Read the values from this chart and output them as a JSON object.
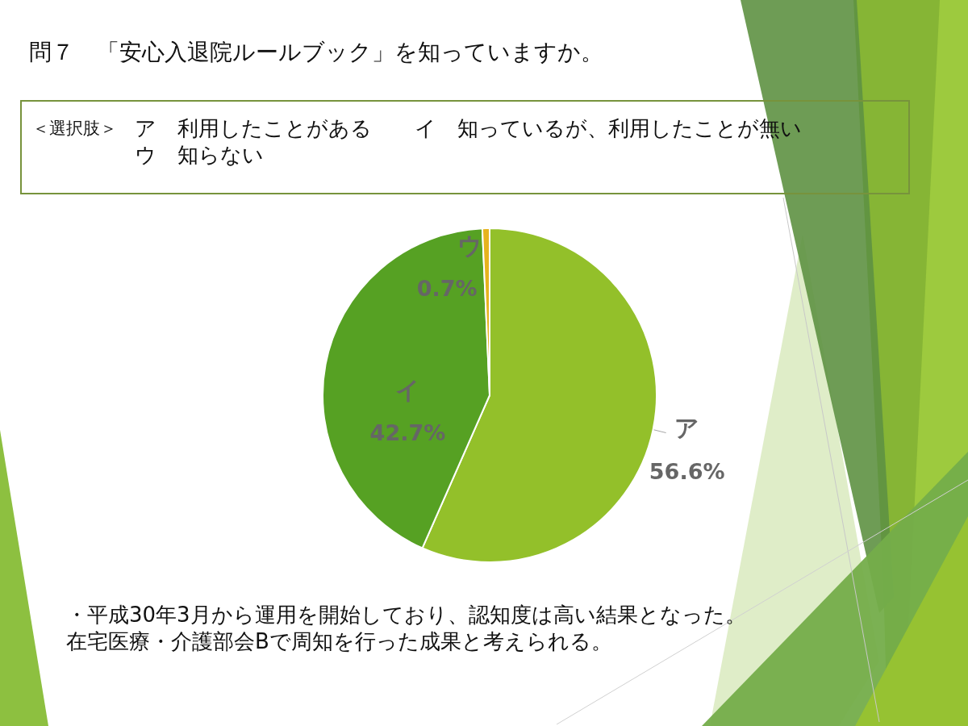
{
  "chart_data": {
    "type": "pie",
    "title": "問７　「安心入退院ルールブック」を知っていますか。",
    "categories": [
      "ア",
      "イ",
      "ウ"
    ],
    "values": [
      56.6,
      42.7,
      0.7
    ],
    "colors": [
      "#93c02a",
      "#56a123",
      "#e6b31e"
    ],
    "value_labels": [
      "56.6%",
      "42.7%",
      "0.7%"
    ],
    "annotations": [
      "＜選択肢＞",
      "ア　利用したことがある",
      "イ　知っているが、利用したことが無い",
      "ウ　知らない",
      "・平成30年3月から運用を開始しており、認知度は高い結果となった。",
      "在宅医療・介護部会Bで周知を行った成果と考えられる。"
    ]
  }
}
